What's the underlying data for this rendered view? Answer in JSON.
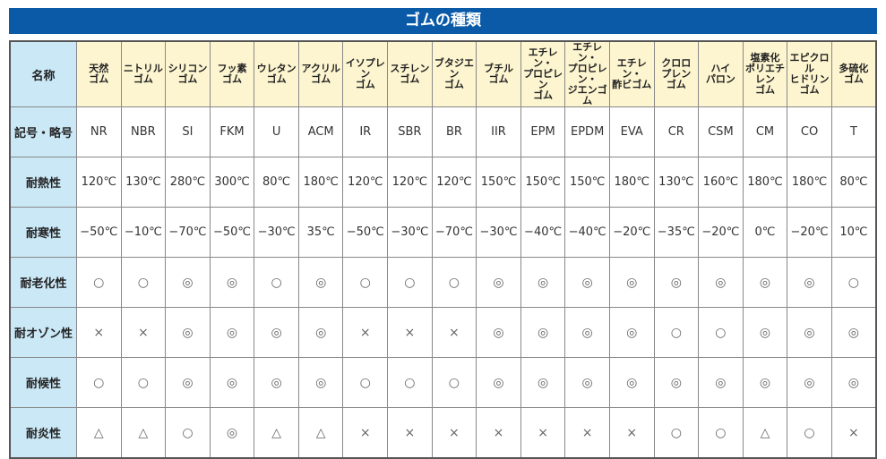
{
  "title": "ゴムの種類",
  "row_headers": [
    "名称",
    "記号・略号",
    "耐熱性",
    "耐寒性",
    "耐老化性",
    "耐オゾン性",
    "耐候性",
    "耐炎性"
  ],
  "names": [
    "天然\nゴム",
    "ニトリル\nゴム",
    "シリコン\nゴム",
    "フッ素\nゴム",
    "ウレタン\nゴム",
    "アクリル\nゴム",
    "イソプレン\nゴム",
    "スチレン\nゴム",
    "ブタジエン\nゴム",
    "ブチル\nゴム",
    "エチレン・\nプロピレン\nゴム",
    "エチレン・\nプロピレン・\nジエンゴム",
    "エチレン・\n酢ビゴム",
    "クロロ\nプレン\nゴム",
    "ハイ\nパロン",
    "塩素化\nポリエチレン\nゴム",
    "エピクロル\nヒドリン\nゴム",
    "多硫化\nゴム"
  ],
  "codes": [
    "NR",
    "NBR",
    "SI",
    "FKM",
    "U",
    "ACM",
    "IR",
    "SBR",
    "BR",
    "IIR",
    "EPM",
    "EPDM",
    "EVA",
    "CR",
    "CSM",
    "CM",
    "CO",
    "T"
  ],
  "heat": [
    "120℃",
    "130℃",
    "280℃",
    "300℃",
    "80℃",
    "180℃",
    "120℃",
    "120℃",
    "120℃",
    "150℃",
    "150℃",
    "150℃",
    "180℃",
    "130℃",
    "160℃",
    "180℃",
    "180℃",
    "80℃"
  ],
  "cold": [
    "−50℃",
    "−10℃",
    "−70℃",
    "−50℃",
    "−30℃",
    "35℃",
    "−50℃",
    "−30℃",
    "−70℃",
    "−30℃",
    "−40℃",
    "−40℃",
    "−20℃",
    "−35℃",
    "−20℃",
    "0℃",
    "−20℃",
    "10℃"
  ],
  "aging": [
    "○",
    "○",
    "◎",
    "◎",
    "○",
    "◎",
    "○",
    "○",
    "○",
    "◎",
    "◎",
    "◎",
    "◎",
    "◎",
    "◎",
    "◎",
    "◎",
    "○"
  ],
  "ozone": [
    "×",
    "×",
    "◎",
    "◎",
    "◎",
    "◎",
    "×",
    "×",
    "×",
    "◎",
    "◎",
    "◎",
    "◎",
    "○",
    "○",
    "◎",
    "◎",
    "◎"
  ],
  "weather": [
    "○",
    "○",
    "◎",
    "◎",
    "◎",
    "◎",
    "○",
    "○",
    "○",
    "◎",
    "◎",
    "◎",
    "◎",
    "◎",
    "◎",
    "◎",
    "◎",
    "◎"
  ],
  "flame": [
    "△",
    "△",
    "○",
    "◎",
    "△",
    "△",
    "×",
    "×",
    "×",
    "×",
    "×",
    "×",
    "×",
    "○",
    "○",
    "△",
    "○",
    "×"
  ]
}
